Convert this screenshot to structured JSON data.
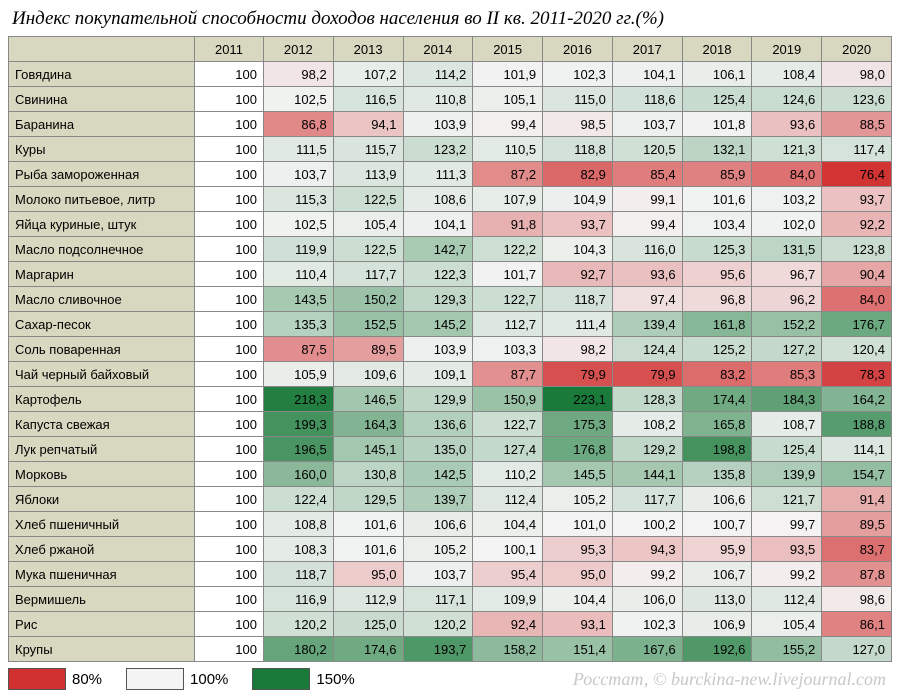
{
  "title": "Индекс покупательной способности доходов населения во II кв. 2011-2020 гг.(%)",
  "years": [
    "2011",
    "2012",
    "2013",
    "2014",
    "2015",
    "2016",
    "2017",
    "2018",
    "2019",
    "2020"
  ],
  "rows": [
    {
      "label": "Говядина",
      "v": [
        "100",
        "98,2",
        "107,2",
        "114,2",
        "101,9",
        "102,3",
        "104,1",
        "106,1",
        "108,4",
        "98,0"
      ]
    },
    {
      "label": "Свинина",
      "v": [
        "100",
        "102,5",
        "116,5",
        "110,8",
        "105,1",
        "115,0",
        "118,6",
        "125,4",
        "124,6",
        "123,6"
      ]
    },
    {
      "label": "Баранина",
      "v": [
        "100",
        "86,8",
        "94,1",
        "103,9",
        "99,4",
        "98,5",
        "103,7",
        "101,8",
        "93,6",
        "88,5"
      ]
    },
    {
      "label": "Куры",
      "v": [
        "100",
        "111,5",
        "115,7",
        "123,2",
        "110,5",
        "118,8",
        "120,5",
        "132,1",
        "121,3",
        "117,4"
      ]
    },
    {
      "label": "Рыба замороженная",
      "v": [
        "100",
        "103,7",
        "113,9",
        "111,3",
        "87,2",
        "82,9",
        "85,4",
        "85,9",
        "84,0",
        "76,4"
      ]
    },
    {
      "label": "Молоко питьевое, литр",
      "v": [
        "100",
        "115,3",
        "122,5",
        "108,6",
        "107,9",
        "104,9",
        "99,1",
        "101,6",
        "103,2",
        "93,7"
      ]
    },
    {
      "label": "Яйца куриные, штук",
      "v": [
        "100",
        "102,5",
        "105,4",
        "104,1",
        "91,8",
        "93,7",
        "99,4",
        "103,4",
        "102,0",
        "92,2"
      ]
    },
    {
      "label": "Масло подсолнечное",
      "v": [
        "100",
        "119,9",
        "122,5",
        "142,7",
        "122,2",
        "104,3",
        "116,0",
        "125,3",
        "131,5",
        "123,8"
      ]
    },
    {
      "label": "Маргарин",
      "v": [
        "100",
        "110,4",
        "117,7",
        "122,3",
        "101,7",
        "92,7",
        "93,6",
        "95,6",
        "96,7",
        "90,4"
      ]
    },
    {
      "label": "Масло сливочное",
      "v": [
        "100",
        "143,5",
        "150,2",
        "129,3",
        "122,7",
        "118,7",
        "97,4",
        "96,8",
        "96,2",
        "84,0"
      ]
    },
    {
      "label": "Сахар-песок",
      "v": [
        "100",
        "135,3",
        "152,5",
        "145,2",
        "112,7",
        "111,4",
        "139,4",
        "161,8",
        "152,2",
        "176,7"
      ]
    },
    {
      "label": "Соль поваренная",
      "v": [
        "100",
        "87,5",
        "89,5",
        "103,9",
        "103,3",
        "98,2",
        "124,4",
        "125,2",
        "127,2",
        "120,4"
      ]
    },
    {
      "label": "Чай черный байховый",
      "v": [
        "100",
        "105,9",
        "109,6",
        "109,1",
        "87,7",
        "79,9",
        "79,9",
        "83,2",
        "85,3",
        "78,3"
      ]
    },
    {
      "label": "Картофель",
      "v": [
        "100",
        "218,3",
        "146,5",
        "129,9",
        "150,9",
        "223,1",
        "128,3",
        "174,4",
        "184,3",
        "164,2"
      ]
    },
    {
      "label": "Капуста свежая",
      "v": [
        "100",
        "199,3",
        "164,3",
        "136,6",
        "122,7",
        "175,3",
        "108,2",
        "165,8",
        "108,7",
        "188,8"
      ]
    },
    {
      "label": "Лук репчатый",
      "v": [
        "100",
        "196,5",
        "145,1",
        "135,0",
        "127,4",
        "176,8",
        "129,2",
        "198,8",
        "125,4",
        "114,1"
      ]
    },
    {
      "label": "Морковь",
      "v": [
        "100",
        "160,0",
        "130,8",
        "142,5",
        "110,2",
        "145,5",
        "144,1",
        "135,8",
        "139,9",
        "154,7"
      ]
    },
    {
      "label": "Яблоки",
      "v": [
        "100",
        "122,4",
        "129,5",
        "139,7",
        "112,4",
        "105,2",
        "117,7",
        "106,6",
        "121,7",
        "91,4"
      ]
    },
    {
      "label": "Хлеб пшеничный",
      "v": [
        "100",
        "108,8",
        "101,6",
        "106,6",
        "104,4",
        "101,0",
        "100,2",
        "100,7",
        "99,7",
        "89,5"
      ]
    },
    {
      "label": "Хлеб ржаной",
      "v": [
        "100",
        "108,3",
        "101,6",
        "105,2",
        "100,1",
        "95,3",
        "94,3",
        "95,9",
        "93,5",
        "83,7"
      ]
    },
    {
      "label": "Мука пшеничная",
      "v": [
        "100",
        "118,7",
        "95,0",
        "103,7",
        "95,4",
        "95,0",
        "99,2",
        "106,7",
        "99,2",
        "87,8"
      ]
    },
    {
      "label": "Вермишель",
      "v": [
        "100",
        "116,9",
        "112,9",
        "117,1",
        "109,9",
        "104,4",
        "106,0",
        "113,0",
        "112,4",
        "98,6"
      ]
    },
    {
      "label": "Рис",
      "v": [
        "100",
        "120,2",
        "125,0",
        "120,2",
        "92,4",
        "93,1",
        "102,3",
        "106,9",
        "105,4",
        "86,1"
      ]
    },
    {
      "label": "Крупы",
      "v": [
        "100",
        "180,2",
        "174,6",
        "193,7",
        "158,2",
        "151,4",
        "167,6",
        "192,6",
        "155,2",
        "127,0"
      ]
    }
  ],
  "legend": [
    {
      "color": "#d13030",
      "label": "80%"
    },
    {
      "color": "#f4f4f4",
      "label": "100%"
    },
    {
      "color": "#1a7a3a",
      "label": "150%"
    }
  ],
  "color_scale": {
    "min": 76,
    "mid": 100,
    "max": 223,
    "min_color": "#d13030",
    "mid_color": "#f4f4f4",
    "max_color": "#1a7a3a"
  },
  "source": "Росстат, © burckina-new.livejournal.com",
  "styling": {
    "header_bg": "#d8d8c0",
    "border_color": "#888888",
    "title_font": "Georgia italic 19px",
    "cell_font": "Arial 13px",
    "col_width_year": 62,
    "col_width_label": 180
  }
}
